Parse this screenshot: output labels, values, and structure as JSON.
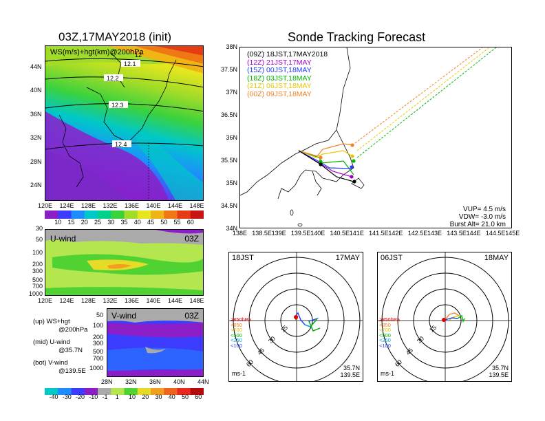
{
  "left": {
    "title": "03Z,17MAY2018 (init)",
    "map_label": "WS(m/s)+hgt(km)@200hPa",
    "contour_labels": [
      "12.1",
      "12.2",
      "12.3",
      "12.4",
      "12"
    ],
    "lat_ticks": [
      "44N",
      "40N",
      "36N",
      "32N",
      "28N",
      "24N"
    ],
    "lon_ticks": [
      "120E",
      "124E",
      "128E",
      "132E",
      "136E",
      "140E",
      "144E",
      "148E"
    ],
    "ws_colorbar": [
      "10",
      "15",
      "20",
      "25",
      "30",
      "35",
      "40",
      "45",
      "50",
      "55",
      "60"
    ],
    "uwind_label": "U-wind",
    "uwind_time": "03Z",
    "p_ticks": [
      "30",
      "50",
      "100",
      "200",
      "300",
      "500",
      "700",
      "1000"
    ],
    "vwind_label": "V-wind",
    "vwind_time": "03Z",
    "vwind_p_ticks": [
      "50",
      "100",
      "200",
      "300",
      "500",
      "700",
      "1000"
    ],
    "vlat_ticks": [
      "28N",
      "32N",
      "36N",
      "40N",
      "44N"
    ],
    "notes": [
      {
        "a": "(up) WS+hgt",
        "b": "@200hPa"
      },
      {
        "a": "(mid) U-wind",
        "b": "@35.7N"
      },
      {
        "a": "(bot) V-wind",
        "b": "@139.5E"
      }
    ],
    "wind_colorbar": [
      "-40",
      "-30",
      "-20",
      "-10",
      "-1",
      "1",
      "10",
      "20",
      "30",
      "40",
      "50",
      "60"
    ]
  },
  "right": {
    "title": "Sonde Tracking Forecast",
    "lat_ticks": [
      "38N",
      "37.5N",
      "37N",
      "36.5N",
      "36N",
      "35.5N",
      "35N",
      "34.5N",
      "34N"
    ],
    "lon_ticks": [
      "138E",
      "138.5E",
      "139E",
      "139.5E",
      "140E",
      "140.5E",
      "141E",
      "141.5E",
      "142E",
      "142.5E",
      "143E",
      "143.5E",
      "144E",
      "144.5E",
      "145E"
    ],
    "legend": [
      {
        "z": "(09Z)",
        "t": "18JST,17MAY2018",
        "color": "#000000"
      },
      {
        "z": "(12Z)",
        "t": "21JST,17MAY",
        "color": "#a000c8"
      },
      {
        "z": "(15Z)",
        "t": "00JST,18MAY",
        "color": "#1e3cff"
      },
      {
        "z": "(18Z)",
        "t": "03JST,18MAY",
        "color": "#00b400"
      },
      {
        "z": "(21Z)",
        "t": "06JST,18MAY",
        "color": "#e6c800"
      },
      {
        "z": "(00Z)",
        "t": "09JST,18MAY",
        "color": "#f08228"
      }
    ],
    "params": [
      "VUP=  4.5 m/s",
      "VDW= -3.0 m/s",
      "Burst Alt= 21.0 km"
    ]
  },
  "hodo1": {
    "left_label": "18JST",
    "right_label": "17MAY",
    "ring_labels": [
      "15",
      "30",
      "45",
      "60"
    ],
    "levels": [
      "≥850hPa",
      "<850",
      "<700",
      "<500",
      "<250",
      "<100"
    ],
    "unit": "ms-1",
    "lat": "35.7N",
    "lon": "139.5E"
  },
  "hodo2": {
    "left_label": "06JST",
    "right_label": "18MAY",
    "ring_labels": [
      "15",
      "30",
      "45",
      "60"
    ],
    "levels": [
      "≥850hPa",
      "<850",
      "<700",
      "<500",
      "<250",
      "<100"
    ],
    "unit": "ms-1",
    "lat": "35.7N",
    "lon": "139.5E"
  },
  "level_colors": [
    "#e60000",
    "#f08228",
    "#e6c800",
    "#00b400",
    "#00a0e6",
    "#1e3cff"
  ],
  "colors": {
    "ws_scale": [
      "#8c1ec8",
      "#3c3cff",
      "#1e8cff",
      "#00c8c8",
      "#00d28c",
      "#3cd23c",
      "#a0dc28",
      "#e6e61e",
      "#f0b414",
      "#f07814",
      "#e63c14",
      "#c81414"
    ],
    "wind_scale": [
      "#00c8c8",
      "#1e8cff",
      "#3c3cff",
      "#8c1ec8",
      "#aaaaaa",
      "#b4e650",
      "#50d232",
      "#e6dc28",
      "#f0a01e",
      "#f0641e",
      "#e6281e",
      "#b40a0a"
    ]
  }
}
